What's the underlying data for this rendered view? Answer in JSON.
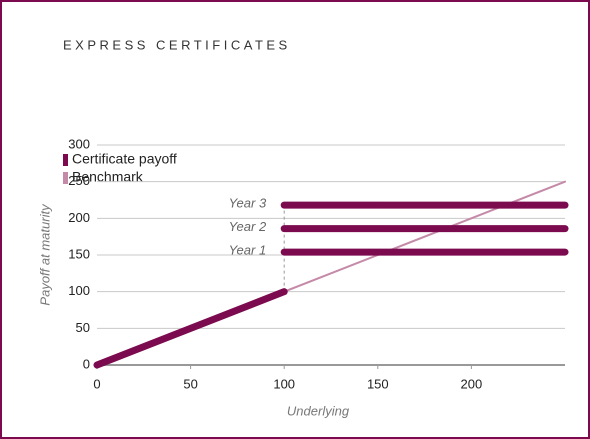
{
  "chart_data": {
    "type": "line",
    "title": "EXPRESS CERTIFICATES",
    "x_label": "Underlying",
    "y_label": "Payoff at maturity",
    "xlim": [
      0,
      250
    ],
    "xticks": [
      0,
      50,
      100,
      150,
      200
    ],
    "ylim": [
      0,
      300
    ],
    "yticks": [
      0,
      50,
      100,
      150,
      200,
      250,
      300
    ],
    "grid": true,
    "series": [
      {
        "name": "Certificate payoff",
        "color": "#7b0a4f",
        "x": [
          0,
          100
        ],
        "values": [
          0,
          100
        ]
      },
      {
        "name": "Benchmark",
        "color": "#c48aa8",
        "x": [
          0,
          250
        ],
        "values": [
          0,
          250
        ]
      }
    ],
    "annotations": [
      {
        "label": "Year 1",
        "x": [
          100,
          250
        ],
        "value": 154
      },
      {
        "label": "Year 2",
        "x": [
          100,
          250
        ],
        "value": 186
      },
      {
        "label": "Year 3",
        "x": [
          100,
          250
        ],
        "value": 218
      }
    ]
  }
}
